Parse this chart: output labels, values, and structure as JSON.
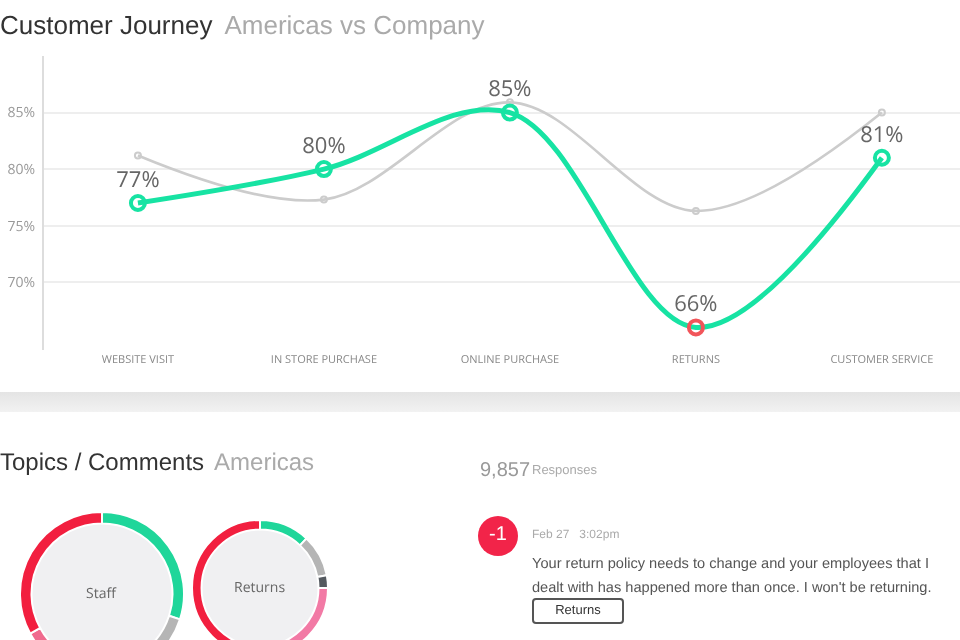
{
  "chart_data": [
    {
      "type": "line",
      "title": "Customer Journey",
      "subtitle": "Americas vs Company",
      "categories": [
        "WEBSITE VISIT",
        "IN STORE PURCHASE",
        "ONLINE PURCHASE",
        "RETURNS",
        "CUSTOMER SERVICE"
      ],
      "series": [
        {
          "color": "#cccccc",
          "values": [
            81.2,
            77.3,
            85.9,
            76.3,
            85.0
          ]
        },
        {
          "color": "#17e3a3",
          "colors": [
            "#17e3a3",
            "#17e3a3",
            "#17e3a3",
            "#f2555a",
            "#17e3a3"
          ],
          "values": [
            77,
            80,
            85,
            66,
            81
          ],
          "value_labels": [
            "77%",
            "80%",
            "85%",
            "66%",
            "81%"
          ]
        }
      ],
      "ylim": [
        64,
        90
      ],
      "yticks": [
        {
          "value": 70,
          "label": "70%"
        },
        {
          "value": 75,
          "label": "75%"
        },
        {
          "value": 80,
          "label": "80%"
        },
        {
          "value": 85,
          "label": "85%"
        }
      ],
      "grid": "y",
      "marker": "circle"
    },
    {
      "type": "donut",
      "title": "Staff",
      "categories": [
        null,
        null,
        null,
        null
      ],
      "values": [
        30,
        12,
        25,
        33
      ],
      "colors": [
        "#1fd69a",
        "#b5b5b5",
        "#f06a8e",
        "#f21f3f"
      ]
    },
    {
      "type": "donut",
      "title": "Returns",
      "categories": [
        null,
        null,
        null,
        null,
        null
      ],
      "values": [
        12,
        10,
        3,
        25,
        50
      ],
      "colors": [
        "#1fd69a",
        "#b5b5b5",
        "#555a60",
        "#f27aa5",
        "#f21f3f"
      ]
    },
    {
      "type": "other",
      "title": "Topics / Comments",
      "subtitle": "Americas",
      "annotations": [
        "9,857",
        "Responses",
        "-1",
        "Feb 27   3:02pm",
        "Your return policy needs to change and your employees that I dealt with has happened more than once.  I won't be returning.",
        "Returns"
      ]
    }
  ]
}
